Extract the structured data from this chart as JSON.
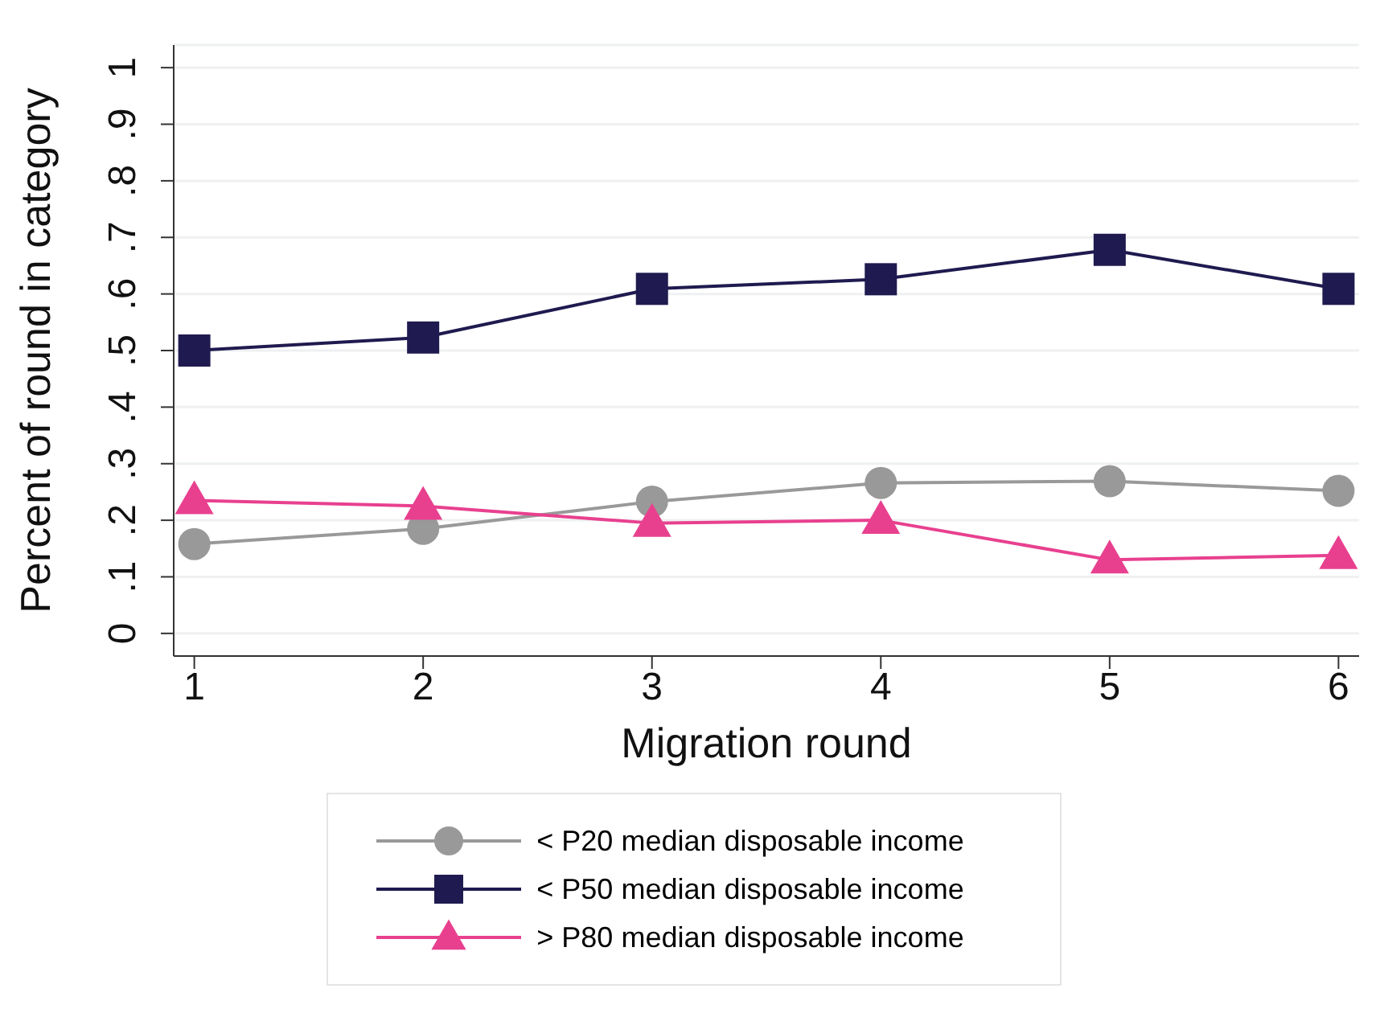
{
  "chart_data": {
    "type": "line",
    "xlabel": "Migration round",
    "ylabel": "Percent of round in category",
    "x": [
      1,
      2,
      3,
      4,
      5,
      6
    ],
    "xlim": [
      0.91,
      6.09
    ],
    "xticks": [
      1,
      2,
      3,
      4,
      5,
      6
    ],
    "ylim": [
      -0.04,
      1.04
    ],
    "yticks": [
      {
        "value": 0,
        "label": "0"
      },
      {
        "value": 0.1,
        "label": ".1"
      },
      {
        "value": 0.2,
        "label": ".2"
      },
      {
        "value": 0.3,
        "label": ".3"
      },
      {
        "value": 0.4,
        "label": ".4"
      },
      {
        "value": 0.5,
        "label": ".5"
      },
      {
        "value": 0.6,
        "label": ".6"
      },
      {
        "value": 0.7,
        "label": ".7"
      },
      {
        "value": 0.8,
        "label": ".8"
      },
      {
        "value": 0.9,
        "label": ".9"
      },
      {
        "value": 1,
        "label": "1"
      }
    ],
    "grid": "y",
    "legend": "bottom",
    "series": [
      {
        "name": "< P20 median disposable income",
        "color": "#999999",
        "marker": "circle",
        "values": [
          0.158,
          0.185,
          0.233,
          0.266,
          0.269,
          0.252
        ]
      },
      {
        "name": "< P50 median disposable income",
        "color": "#1f1a4f",
        "marker": "square",
        "values": [
          0.5,
          0.523,
          0.609,
          0.626,
          0.678,
          0.609
        ]
      },
      {
        "name": "> P80 median disposable income",
        "color": "#e8408f",
        "marker": "triangle",
        "values": [
          0.235,
          0.225,
          0.195,
          0.2,
          0.13,
          0.138
        ]
      }
    ]
  }
}
